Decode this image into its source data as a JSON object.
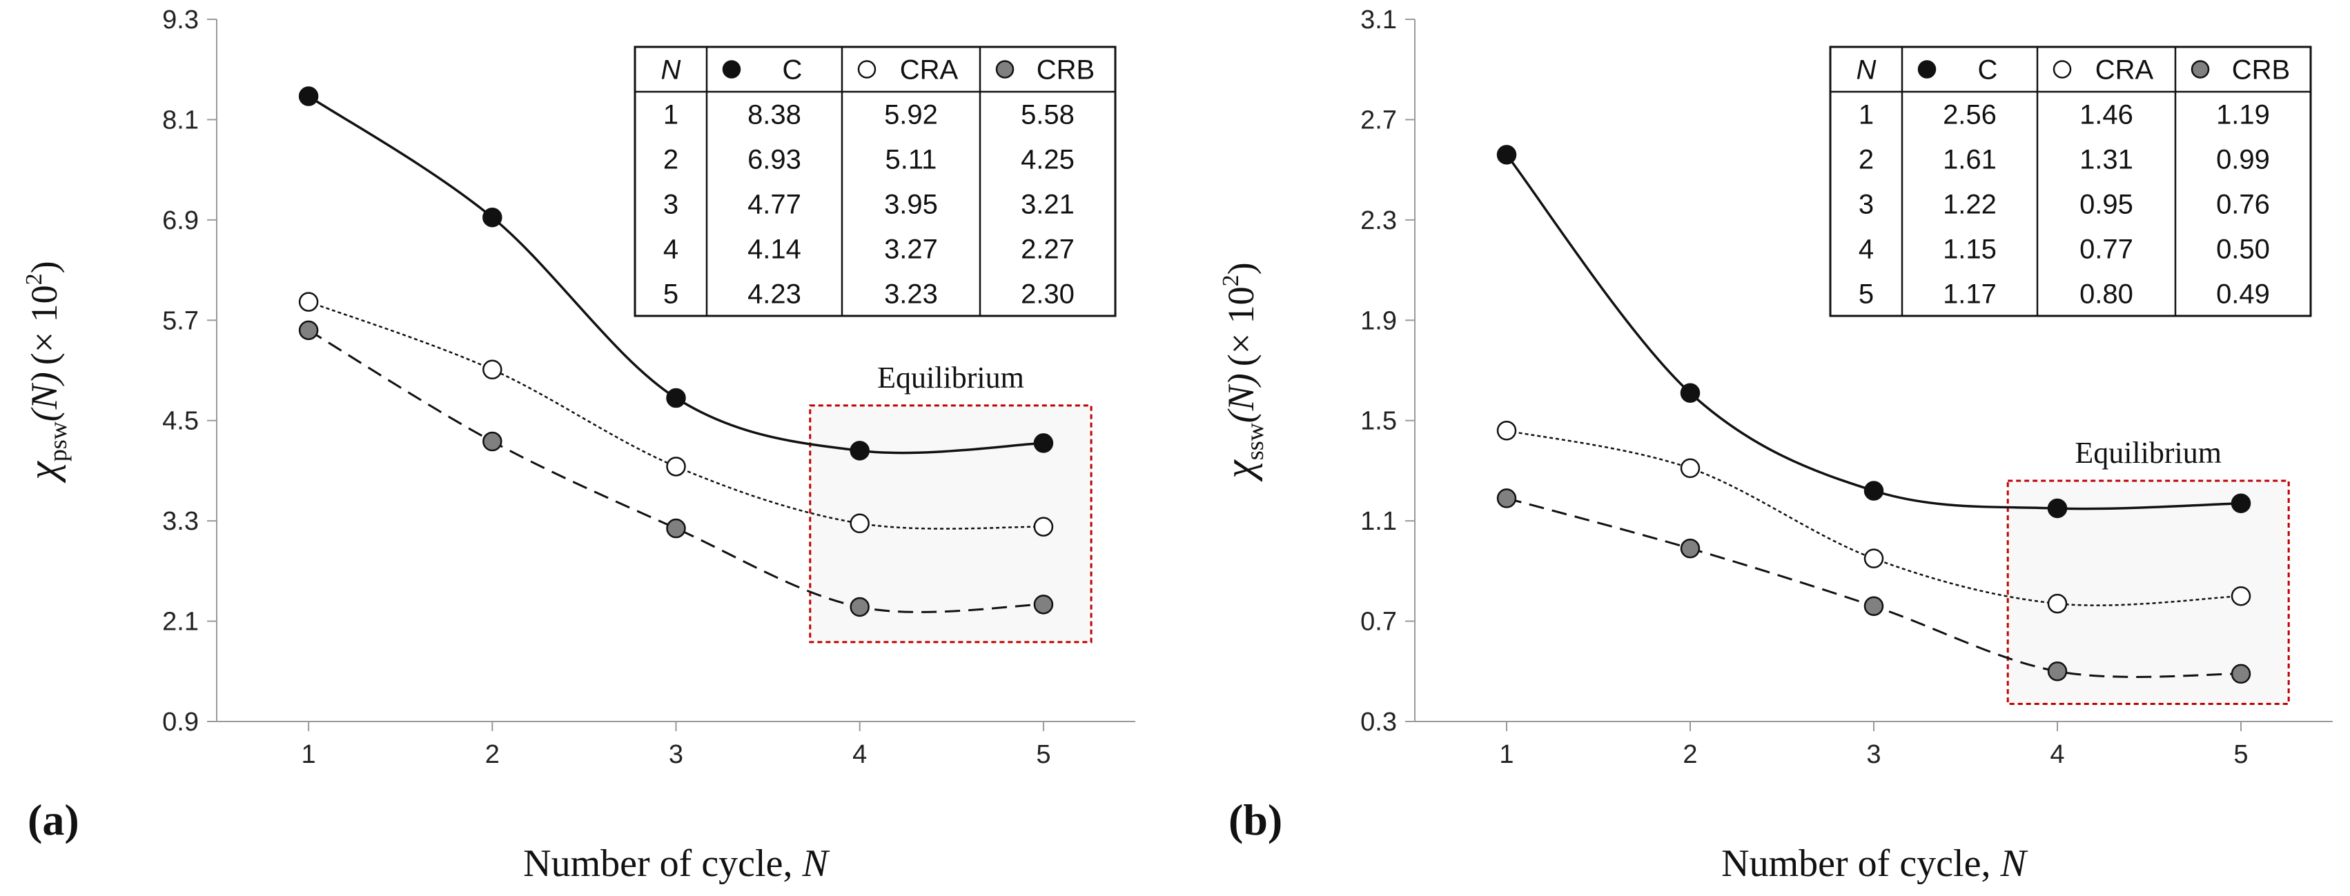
{
  "chart_data": [
    {
      "type": "line",
      "panel_label": "(a)",
      "ylabel_symbol": "χ",
      "ylabel_sub": "psw",
      "ylabel_arg": "(N)",
      "ylabel_scale_pre": "(× 10",
      "ylabel_scale_exp": "2",
      "ylabel_scale_post": ")",
      "xlabel": "Number of cycle, ",
      "xlabel_var": "N",
      "x": [
        1,
        2,
        3,
        4,
        5
      ],
      "xlim": [
        0.5,
        5.5
      ],
      "ylim": [
        0.9,
        9.3
      ],
      "yticks": [
        "0.9",
        "2.1",
        "3.3",
        "4.5",
        "5.7",
        "6.9",
        "8.1",
        "9.3"
      ],
      "xticks": [
        "1",
        "2",
        "3",
        "4",
        "5"
      ],
      "series": [
        {
          "name": "C",
          "marker": "filled",
          "line": "solid",
          "values": [
            8.38,
            6.93,
            4.77,
            4.14,
            4.23
          ]
        },
        {
          "name": "CRA",
          "marker": "open",
          "line": "dotted",
          "values": [
            5.92,
            5.11,
            3.95,
            3.27,
            3.23
          ]
        },
        {
          "name": "CRB",
          "marker": "grey",
          "line": "dashed",
          "values": [
            5.58,
            4.25,
            3.21,
            2.27,
            2.3
          ]
        }
      ],
      "annotation": "Equilibrium",
      "annotation_box": {
        "x": [
          3.73,
          5.26
        ],
        "y": [
          1.85,
          4.68
        ]
      },
      "table": {
        "header": [
          "N",
          "C",
          "CRA",
          "CRB"
        ],
        "rows": [
          [
            "1",
            "8.38",
            "5.92",
            "5.58"
          ],
          [
            "2",
            "6.93",
            "5.11",
            "4.25"
          ],
          [
            "3",
            "4.77",
            "3.95",
            "3.21"
          ],
          [
            "4",
            "4.14",
            "3.27",
            "2.27"
          ],
          [
            "5",
            "4.23",
            "3.23",
            "2.30"
          ]
        ]
      }
    },
    {
      "type": "line",
      "panel_label": "(b)",
      "ylabel_symbol": "χ",
      "ylabel_sub": "ssw",
      "ylabel_arg": "(N)",
      "ylabel_scale_pre": "(× 10",
      "ylabel_scale_exp": "2",
      "ylabel_scale_post": ")",
      "xlabel": "Number of cycle, ",
      "xlabel_var": "N",
      "x": [
        1,
        2,
        3,
        4,
        5
      ],
      "xlim": [
        0.5,
        5.5
      ],
      "ylim": [
        0.3,
        3.1
      ],
      "yticks": [
        "0.3",
        "0.7",
        "1.1",
        "1.5",
        "1.9",
        "2.3",
        "2.7",
        "3.1"
      ],
      "xticks": [
        "1",
        "2",
        "3",
        "4",
        "5"
      ],
      "series": [
        {
          "name": "C",
          "marker": "filled",
          "line": "solid",
          "values": [
            2.56,
            1.61,
            1.22,
            1.15,
            1.17
          ]
        },
        {
          "name": "CRA",
          "marker": "open",
          "line": "dotted",
          "values": [
            1.46,
            1.31,
            0.95,
            0.77,
            0.8
          ]
        },
        {
          "name": "CRB",
          "marker": "grey",
          "line": "dashed",
          "values": [
            1.19,
            0.99,
            0.76,
            0.5,
            0.49
          ]
        }
      ],
      "annotation": "Equilibrium",
      "annotation_box": {
        "x": [
          3.73,
          5.26
        ],
        "y": [
          0.37,
          1.26
        ]
      },
      "table": {
        "header": [
          "N",
          "C",
          "CRA",
          "CRB"
        ],
        "rows": [
          [
            "1",
            "2.56",
            "1.46",
            "1.19"
          ],
          [
            "2",
            "1.61",
            "1.31",
            "0.99"
          ],
          [
            "3",
            "1.22",
            "0.95",
            "0.76"
          ],
          [
            "4",
            "1.15",
            "0.77",
            "0.50"
          ],
          [
            "5",
            "1.17",
            "0.80",
            "0.49"
          ]
        ]
      }
    }
  ],
  "colors": {
    "filled_marker": "#111111",
    "open_marker": "#ffffff",
    "grey_marker": "#808080",
    "equilibrium_box": "#c00000",
    "axis": "#999999"
  }
}
